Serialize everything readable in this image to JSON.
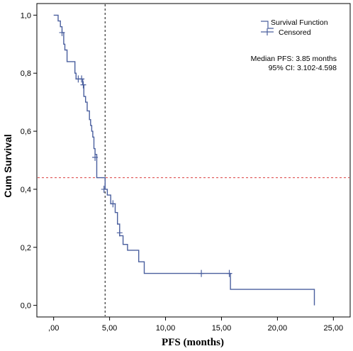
{
  "chart_data": {
    "type": "line",
    "subtype": "kaplan-meier step function",
    "xlabel": "PFS (months)",
    "ylabel": "Cum Survival",
    "xlim": [
      -1.5,
      26.5
    ],
    "ylim": [
      -0.04,
      1.04
    ],
    "x_ticks": [
      {
        "value": 0,
        "label": ",00"
      },
      {
        "value": 5,
        "label": "5,00"
      },
      {
        "value": 10,
        "label": "10,00"
      },
      {
        "value": 15,
        "label": "15,00"
      },
      {
        "value": 20,
        "label": "20,00"
      },
      {
        "value": 25,
        "label": "25,00"
      }
    ],
    "y_ticks": [
      {
        "value": 0,
        "label": "0,0"
      },
      {
        "value": 0.2,
        "label": "0,2"
      },
      {
        "value": 0.4,
        "label": "0,4"
      },
      {
        "value": 0.6,
        "label": "0,6"
      },
      {
        "value": 0.8,
        "label": "0,8"
      },
      {
        "value": 1.0,
        "label": "1,0"
      }
    ],
    "grid": false,
    "legend_position": "top-right",
    "series": [
      {
        "name": "Survival Function",
        "color": "#4a5f9e",
        "steps": [
          [
            0.0,
            1.0
          ],
          [
            0.4,
            0.98
          ],
          [
            0.6,
            0.96
          ],
          [
            0.75,
            0.94
          ],
          [
            0.9,
            0.9
          ],
          [
            1.0,
            0.88
          ],
          [
            1.2,
            0.84
          ],
          [
            1.9,
            0.8
          ],
          [
            2.0,
            0.78
          ],
          [
            2.6,
            0.76
          ],
          [
            2.7,
            0.72
          ],
          [
            2.85,
            0.7
          ],
          [
            3.0,
            0.67
          ],
          [
            3.2,
            0.64
          ],
          [
            3.3,
            0.62
          ],
          [
            3.4,
            0.6
          ],
          [
            3.5,
            0.58
          ],
          [
            3.6,
            0.54
          ],
          [
            3.7,
            0.52
          ],
          [
            3.85,
            0.44
          ],
          [
            4.6,
            0.4
          ],
          [
            4.8,
            0.38
          ],
          [
            5.1,
            0.35
          ],
          [
            5.5,
            0.32
          ],
          [
            5.7,
            0.28
          ],
          [
            5.9,
            0.24
          ],
          [
            6.2,
            0.21
          ],
          [
            6.6,
            0.19
          ],
          [
            7.6,
            0.15
          ],
          [
            8.1,
            0.11
          ],
          [
            15.8,
            0.055
          ],
          [
            23.3,
            0.0
          ]
        ],
        "end_x": 23.3
      }
    ],
    "censored": {
      "name": "Censored",
      "points": [
        [
          0.75,
          0.94
        ],
        [
          2.2,
          0.78
        ],
        [
          2.5,
          0.78
        ],
        [
          2.65,
          0.76
        ],
        [
          3.7,
          0.51
        ],
        [
          4.5,
          0.4
        ],
        [
          5.3,
          0.35
        ],
        [
          5.9,
          0.25
        ],
        [
          13.2,
          0.11
        ],
        [
          15.7,
          0.11
        ]
      ]
    },
    "reference_lines": [
      {
        "orientation": "vertical",
        "x": 4.6,
        "style": "dotted",
        "color": "#333333"
      },
      {
        "orientation": "horizontal",
        "y": 0.44,
        "style": "dotted",
        "color": "#e05555"
      }
    ],
    "annotations": {
      "median": "Median PFS: 3.85 months",
      "ci": "95% CI: 3.102-4.598"
    }
  }
}
